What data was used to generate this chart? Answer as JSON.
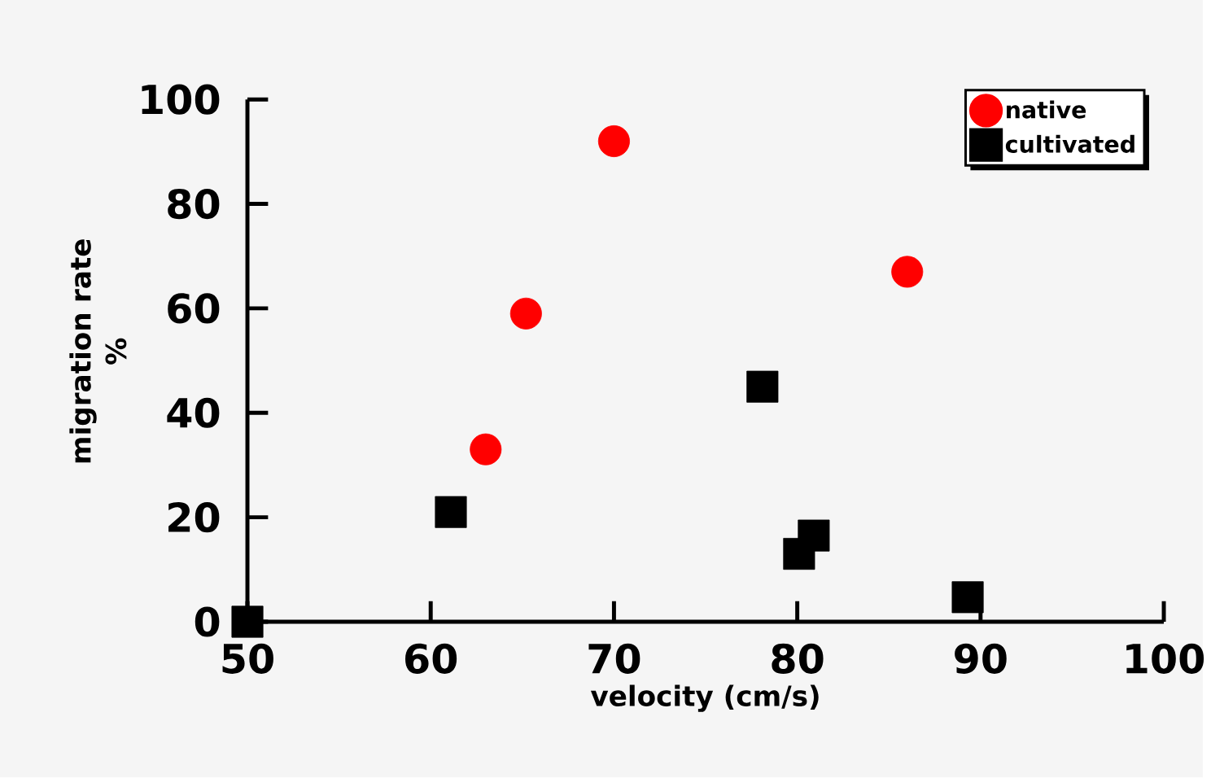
{
  "chart_data": {
    "type": "scatter",
    "xlabel": "velocity (cm/s)",
    "ylabel": "migration rate\n%",
    "xlim": [
      50,
      100
    ],
    "xticks": [
      50,
      60,
      70,
      80,
      90,
      100
    ],
    "ylim": [
      0,
      100
    ],
    "yticks": [
      0,
      20,
      40,
      60,
      80,
      100
    ],
    "legend": "top right",
    "grid": false,
    "series": [
      {
        "name": "native",
        "color": "#ff0000",
        "marker": "circle",
        "x": [
          63,
          65.2,
          70,
          86
        ],
        "values": [
          33,
          59,
          92,
          67
        ]
      },
      {
        "name": "cultivated",
        "color": "#000000",
        "marker": "square",
        "x": [
          50,
          61.1,
          78.1,
          80.1,
          80.9,
          89.3
        ],
        "values": [
          0,
          21,
          45,
          13,
          16.5,
          4.7
        ]
      }
    ]
  }
}
